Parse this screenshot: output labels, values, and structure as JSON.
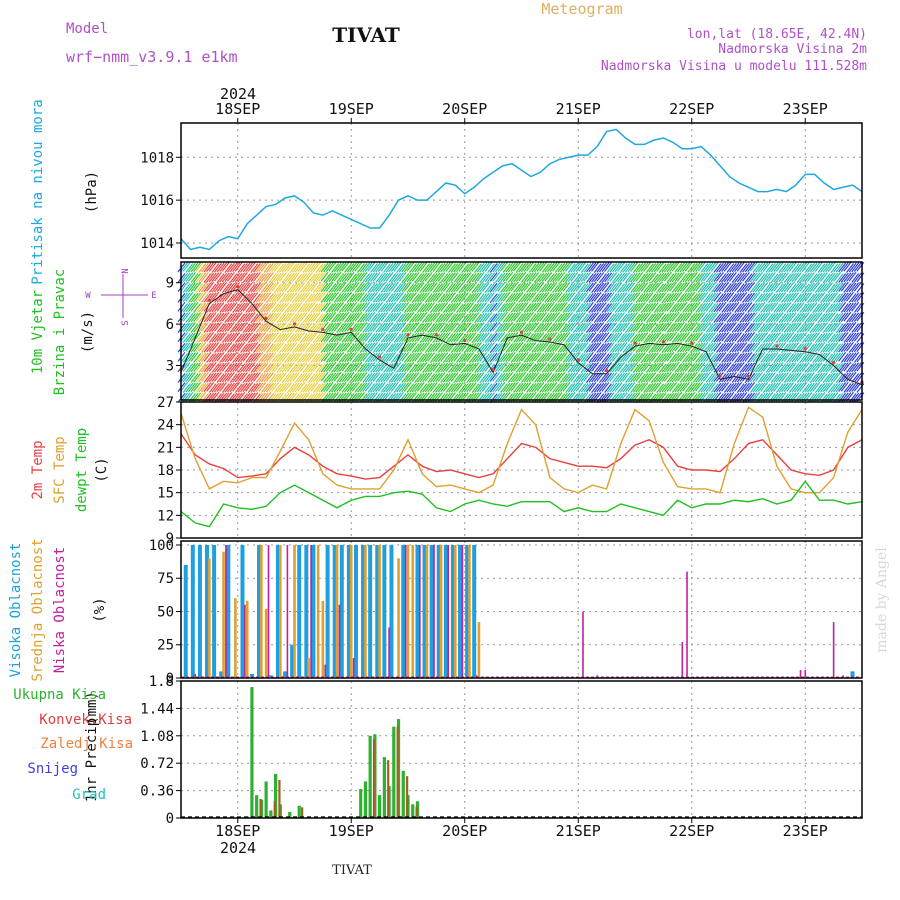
{
  "header": {
    "model_label": "Model",
    "model_name": "wrf−nmm_v3.9.1  e1km",
    "station": "TIVAT",
    "product": "Meteogram",
    "lonlat": "lon,lat (18.65E, 42.4N)",
    "elevation": "Nadmorska Visina 2m",
    "model_elevation": "Nadmorska Visina u modelu 111.528m"
  },
  "time_axis": {
    "year": "2024",
    "day_labels": [
      "18SEP",
      "19SEP",
      "20SEP",
      "21SEP",
      "22SEP",
      "23SEP"
    ],
    "start_hour": 12,
    "total_hours": 144
  },
  "watermark": "made by Angel",
  "footer_station": "TIVAT",
  "colors": {
    "pressure": "#1ea8e0",
    "temp2m": "#e84040",
    "sfc_temp": "#e0a030",
    "dewpt": "#20c020",
    "high_cloud": "#1ea0e0",
    "mid_cloud": "#e0a030",
    "low_cloud": "#c020a0",
    "precip_total": "#30b030",
    "precip_conv": "#e04040",
    "precip_frozen": "#f08040",
    "snow": "#4040e0",
    "hail": "#20c0c0"
  },
  "chart_data": [
    {
      "type": "line",
      "id": "pressure",
      "ylabel_rot": "Pritisak na nivou mora",
      "unit": "(hPa)",
      "ylim": [
        1013.3,
        1019.6
      ],
      "yticks": [
        1014,
        1016,
        1018
      ],
      "x_hours": [
        0,
        2,
        4,
        6,
        8,
        10,
        12,
        14,
        16,
        18,
        20,
        22,
        24,
        26,
        28,
        30,
        32,
        34,
        36,
        38,
        40,
        42,
        44,
        46,
        48,
        50,
        52,
        54,
        56,
        58,
        60,
        62,
        64,
        66,
        68,
        70,
        72,
        74,
        76,
        78,
        80,
        82,
        84,
        86,
        88,
        90,
        92,
        94,
        96,
        98,
        100,
        102,
        104,
        106,
        108,
        110,
        112,
        114,
        116,
        118,
        120,
        122,
        124,
        126,
        128,
        130,
        132,
        134,
        136,
        138,
        140,
        142,
        144
      ],
      "values": [
        1014.2,
        1013.7,
        1013.8,
        1013.7,
        1014.1,
        1014.3,
        1014.2,
        1014.9,
        1015.3,
        1015.7,
        1015.8,
        1016.1,
        1016.2,
        1015.9,
        1015.4,
        1015.3,
        1015.5,
        1015.3,
        1015.1,
        1014.9,
        1014.7,
        1014.7,
        1015.3,
        1016.0,
        1016.2,
        1016.0,
        1016.0,
        1016.4,
        1016.8,
        1016.7,
        1016.3,
        1016.6,
        1017.0,
        1017.3,
        1017.6,
        1017.7,
        1017.4,
        1017.1,
        1017.3,
        1017.7,
        1017.9,
        1018.0,
        1018.1,
        1018.1,
        1018.5,
        1019.2,
        1019.3,
        1018.9,
        1018.6,
        1018.6,
        1018.8,
        1018.9,
        1018.7,
        1018.4,
        1018.4,
        1018.5,
        1018.1,
        1017.6,
        1017.1,
        1016.8,
        1016.6,
        1016.4,
        1016.4,
        1016.5,
        1016.4,
        1016.7,
        1017.2,
        1017.2,
        1016.8,
        1016.5,
        1016.6,
        1016.7,
        1016.4
      ]
    },
    {
      "type": "line",
      "id": "wind",
      "ylabel_rot1": "10m Vjetar",
      "ylabel_rot2": "Brzina i Pravac",
      "unit": "(m/s)",
      "ylim": [
        0.5,
        10.5
      ],
      "yticks": [
        3,
        6,
        9
      ],
      "compass": {
        "n": "N",
        "w": "W",
        "e": "E",
        "s": "S"
      },
      "x_hours": [
        0,
        3,
        6,
        9,
        12,
        15,
        18,
        21,
        24,
        27,
        30,
        33,
        36,
        39,
        42,
        45,
        48,
        51,
        54,
        57,
        60,
        63,
        66,
        69,
        72,
        75,
        78,
        81,
        84,
        87,
        90,
        93,
        96,
        99,
        102,
        105,
        108,
        111,
        114,
        117,
        120,
        123,
        126,
        129,
        132,
        135,
        138,
        141,
        144
      ],
      "speed": [
        2.5,
        5.0,
        7.5,
        8.2,
        8.5,
        7.5,
        6.2,
        5.6,
        5.8,
        5.5,
        5.4,
        5.2,
        5.4,
        4.2,
        3.4,
        2.8,
        5.0,
        5.2,
        5.0,
        4.5,
        4.6,
        4.2,
        2.5,
        5.0,
        5.2,
        4.8,
        4.7,
        4.5,
        3.2,
        2.4,
        2.4,
        3.6,
        4.4,
        4.6,
        4.5,
        4.6,
        4.4,
        4.0,
        2.0,
        2.2,
        2.0,
        4.2,
        4.2,
        4.1,
        4.0,
        3.8,
        3.0,
        2.0,
        1.6
      ],
      "gust_red_dot": true
    },
    {
      "type": "line",
      "id": "temperature",
      "ylabel_rot1": "2m Temp",
      "ylabel_rot2": "SFC Temp",
      "ylabel_rot3": "dewpt Temp",
      "unit": "(C)",
      "ylim": [
        9,
        27
      ],
      "yticks": [
        9,
        12,
        15,
        18,
        21,
        24,
        27
      ],
      "x_hours": [
        0,
        3,
        6,
        9,
        12,
        15,
        18,
        21,
        24,
        27,
        30,
        33,
        36,
        39,
        42,
        45,
        48,
        51,
        54,
        57,
        60,
        63,
        66,
        69,
        72,
        75,
        78,
        81,
        84,
        87,
        90,
        93,
        96,
        99,
        102,
        105,
        108,
        111,
        114,
        117,
        120,
        123,
        126,
        129,
        132,
        135,
        138,
        141,
        144
      ],
      "series": [
        {
          "name": "2m Temp",
          "values": [
            22.8,
            20.0,
            18.8,
            18.2,
            17.0,
            17.2,
            17.5,
            19.5,
            21.0,
            20.0,
            18.5,
            17.5,
            17.2,
            16.8,
            17.0,
            18.5,
            20.0,
            18.5,
            17.8,
            18.0,
            17.5,
            17.0,
            17.5,
            19.5,
            21.5,
            21.0,
            19.5,
            19.0,
            18.5,
            18.5,
            18.3,
            19.5,
            21.3,
            22.0,
            21.0,
            18.5,
            18.0,
            18.0,
            17.8,
            19.5,
            21.5,
            22.0,
            20.0,
            18.0,
            17.5,
            17.3,
            18.0,
            21.0,
            22.0
          ]
        },
        {
          "name": "SFC Temp",
          "values": [
            25.5,
            19.5,
            15.5,
            16.5,
            16.3,
            17.0,
            17.0,
            20.5,
            24.2,
            22.0,
            17.5,
            16.0,
            15.5,
            15.5,
            15.5,
            18.0,
            22.0,
            17.5,
            15.8,
            16.0,
            15.5,
            15.0,
            16.0,
            21.5,
            26.0,
            24.0,
            17.0,
            15.5,
            15.0,
            16.0,
            15.5,
            21.5,
            26.0,
            24.5,
            19.0,
            15.8,
            15.5,
            15.5,
            15.0,
            21.5,
            26.3,
            25.0,
            18.5,
            15.5,
            15.0,
            15.0,
            17.0,
            23.0,
            26.0
          ]
        },
        {
          "name": "dewpt Temp",
          "values": [
            12.5,
            11.0,
            10.5,
            13.5,
            13.0,
            12.8,
            13.2,
            15.0,
            16.0,
            15.0,
            14.0,
            13.0,
            14.0,
            14.5,
            14.5,
            15.0,
            15.2,
            14.8,
            13.0,
            12.5,
            13.5,
            14.0,
            13.5,
            13.2,
            13.8,
            13.8,
            13.8,
            12.5,
            13.0,
            12.5,
            12.5,
            13.5,
            13.0,
            12.5,
            12.0,
            14.0,
            13.0,
            13.5,
            13.5,
            14.0,
            13.8,
            14.2,
            13.5,
            14.0,
            16.5,
            14.0,
            14.0,
            13.5,
            13.8
          ]
        }
      ]
    },
    {
      "type": "bar",
      "id": "clouds",
      "ylabel_rot1": "Visoka Oblacnost",
      "ylabel_rot2": "Srednja Oblacnost",
      "ylabel_rot3": "Niska Oblacnost",
      "unit": "(%)",
      "ylim": [
        0,
        103
      ],
      "yticks": [
        0,
        25,
        50,
        75,
        100
      ],
      "series": [
        {
          "name": "Visoka Oblacnost",
          "x_hours": [
            1,
            2.5,
            4,
            5.5,
            7,
            8.5,
            10,
            13,
            15,
            16.5,
            19,
            20.5,
            22,
            23.5,
            25,
            26.5,
            28,
            31,
            32.5,
            34,
            35.5,
            37,
            38.5,
            40,
            41.5,
            43,
            44.5,
            47,
            50,
            51.5,
            53,
            54.5,
            56,
            57.5,
            59,
            60.5,
            62,
            142
          ],
          "values": [
            85,
            100,
            100,
            100,
            100,
            5,
            100,
            100,
            3,
            100,
            2,
            100,
            5,
            25,
            100,
            100,
            100,
            100,
            100,
            100,
            100,
            100,
            100,
            100,
            100,
            100,
            100,
            100,
            100,
            100,
            100,
            100,
            100,
            100,
            100,
            100,
            100,
            5
          ]
        },
        {
          "name": "Srednja Oblacnost",
          "x_hours": [
            6,
            9,
            11.5,
            14,
            17,
            18,
            21,
            24,
            27,
            29,
            30,
            33,
            36,
            39,
            42,
            46,
            48,
            49,
            52,
            55,
            58,
            61,
            63
          ],
          "values": [
            90,
            95,
            60,
            58,
            100,
            52,
            100,
            100,
            15,
            100,
            58,
            100,
            100,
            100,
            100,
            90,
            100,
            100,
            100,
            100,
            100,
            100,
            42
          ]
        },
        {
          "name": "Niska Oblacnost",
          "x_hours": [
            3,
            9.5,
            13.5,
            18.5,
            22.5,
            27.5,
            30.5,
            33.5,
            36.5,
            44,
            47.5,
            50.5,
            53.5,
            56.5,
            59.5,
            62.5,
            66,
            70,
            85,
            88,
            106,
            107,
            131,
            132,
            138,
            140
          ],
          "values": [
            3,
            100,
            55,
            100,
            100,
            100,
            10,
            55,
            15,
            38,
            100,
            100,
            100,
            100,
            100,
            2,
            1,
            1,
            50,
            2,
            27,
            80,
            6,
            6,
            42,
            2
          ]
        }
      ]
    },
    {
      "type": "bar",
      "id": "precip",
      "ylabel_rot1": "1hr Precip",
      "unit": "(mm)",
      "ylim": [
        0,
        1.8
      ],
      "yticks": [
        "0",
        "0.36",
        "0.72",
        "1.08",
        "1.44",
        "1.8"
      ],
      "legend": [
        "Ukupna Kisa",
        "Konvek.Kisa",
        "Zaledj.Kisa",
        "Snijeg",
        "Grad"
      ],
      "series": [
        {
          "name": "Ukupna Kisa",
          "x_hours": [
            14,
            15,
            16,
            17,
            18,
            19,
            20,
            21,
            23,
            25,
            38,
            39,
            40,
            41,
            42,
            43,
            44,
            45,
            46,
            47,
            48,
            49,
            50
          ],
          "values": [
            0.02,
            1.72,
            0.3,
            0.24,
            0.48,
            0.1,
            0.58,
            0.18,
            0.08,
            0.16,
            0.38,
            0.48,
            1.08,
            1.1,
            0.3,
            0.8,
            0.42,
            1.2,
            1.3,
            0.62,
            0.3,
            0.18,
            0.22
          ]
        },
        {
          "name": "Konvek.Kisa",
          "x_hours": [
            16.5,
            19.5,
            20.5,
            25.3,
            40.5,
            43.5,
            45.5,
            47.5,
            49.5
          ],
          "values": [
            0.25,
            0.22,
            0.5,
            0.14,
            1.04,
            0.76,
            1.2,
            0.55,
            0.15
          ]
        }
      ]
    }
  ]
}
